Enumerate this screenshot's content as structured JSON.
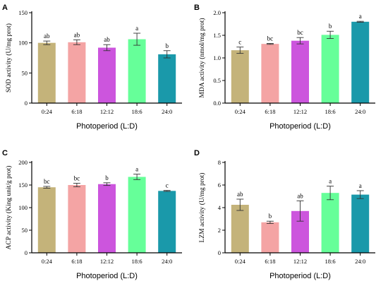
{
  "chart_data": [
    {
      "type": "bar",
      "panel": "A",
      "categories": [
        "0:24",
        "6:18",
        "12:12",
        "18:6",
        "24:0"
      ],
      "values": [
        100,
        101,
        92,
        106,
        81
      ],
      "errors": [
        3,
        4,
        5,
        10,
        6
      ],
      "labels": [
        "ab",
        "ab",
        "ab",
        "a",
        "b"
      ],
      "colors": [
        "#c4b37a",
        "#f4a4a4",
        "#cc55dd",
        "#66ff99",
        "#1a99aa"
      ],
      "xlabel": "Photoperiod (L:D)",
      "ylabel": "SOD activity (U/mg prot)",
      "ylim": [
        0,
        150
      ],
      "yticks": [
        0,
        50,
        100,
        150
      ]
    },
    {
      "type": "bar",
      "panel": "B",
      "categories": [
        "0:24",
        "6:18",
        "12:12",
        "18:6",
        "24:0"
      ],
      "values": [
        1.17,
        1.31,
        1.38,
        1.51,
        1.8
      ],
      "errors": [
        0.07,
        0.01,
        0.07,
        0.08,
        0.01
      ],
      "labels": [
        "c",
        "bc",
        "bc",
        "b",
        "a"
      ],
      "colors": [
        "#c4b37a",
        "#f4a4a4",
        "#cc55dd",
        "#66ff99",
        "#1a99aa"
      ],
      "xlabel": "Photoperiod (L:D)",
      "ylabel": "MDA activity (nmol/mg prot)",
      "ylim": [
        0,
        2.0
      ],
      "yticks": [
        0.0,
        0.5,
        1.0,
        1.5,
        2.0
      ],
      "ytick_labels": [
        "0.0",
        "0.5",
        "1.0",
        "1.5",
        "2.0"
      ]
    },
    {
      "type": "bar",
      "panel": "C",
      "categories": [
        "0:24",
        "6:18",
        "12:12",
        "18:6",
        "24:0"
      ],
      "values": [
        145,
        150,
        152,
        168,
        137
      ],
      "errors": [
        2,
        4,
        3,
        6,
        1
      ],
      "labels": [
        "bc",
        "bc",
        "b",
        "a",
        "c"
      ],
      "colors": [
        "#c4b37a",
        "#f4a4a4",
        "#cc55dd",
        "#66ff99",
        "#1a99aa"
      ],
      "xlabel": "Photoperiod (L:D)",
      "ylabel": "ACP activity (King unit/g prot)",
      "ylim": [
        0,
        200
      ],
      "yticks": [
        0,
        50,
        100,
        150,
        200
      ]
    },
    {
      "type": "bar",
      "panel": "D",
      "categories": [
        "0:24",
        "6:18",
        "12:12",
        "18:6",
        "24:0"
      ],
      "values": [
        4.25,
        2.7,
        3.7,
        5.3,
        5.15
      ],
      "errors": [
        0.5,
        0.1,
        0.9,
        0.6,
        0.35
      ],
      "labels": [
        "ab",
        "b",
        "ab",
        "a",
        "a"
      ],
      "colors": [
        "#c4b37a",
        "#f4a4a4",
        "#cc55dd",
        "#66ff99",
        "#1a99aa"
      ],
      "xlabel": "Photoperiod (L:D)",
      "ylabel": "LZM activity (U/mg prot)",
      "ylim": [
        0,
        8
      ],
      "yticks": [
        0,
        2,
        4,
        6,
        8
      ]
    }
  ]
}
